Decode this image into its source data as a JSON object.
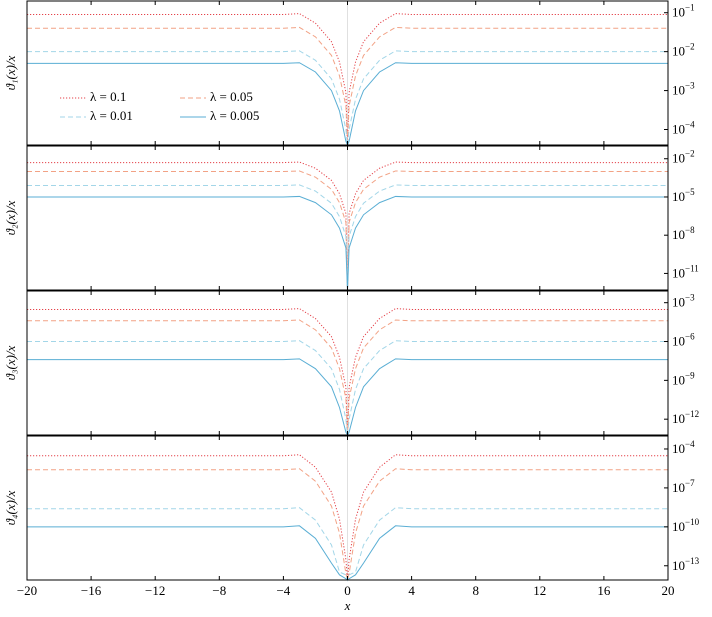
{
  "chart_data": [
    {
      "type": "line",
      "ylabel": "ϑ₁(x)/x",
      "log_y": true,
      "legend": "center left",
      "xtick_labels": false,
      "xlim": [
        -20,
        20
      ],
      "xticks": [
        -20,
        -16,
        -12,
        -8,
        -4,
        0,
        4,
        8,
        12,
        16,
        20
      ],
      "ylim": [
        4e-05,
        0.2
      ],
      "yticks": [
        {
          "value": 0.1,
          "label": "10−1"
        },
        {
          "value": 0.01,
          "label": "10−2"
        },
        {
          "value": 0.001,
          "label": "10−3"
        },
        {
          "value": 0.0001,
          "label": "10−4"
        }
      ],
      "x": [
        -20,
        -12,
        -4,
        -3,
        -2,
        -1,
        -0.5,
        -0.1,
        0,
        0.1,
        0.5,
        1,
        2,
        3,
        4,
        12,
        20
      ],
      "series": [
        {
          "name": "λ = 0.1",
          "color": "#e4424a",
          "line_style": "dotted",
          "values": [
            0.09,
            0.09,
            0.09,
            0.095,
            0.054,
            0.018,
            0.0054,
            0.0009,
            4e-05,
            0.0009,
            0.0054,
            0.018,
            0.054,
            0.095,
            0.09,
            0.09,
            0.09
          ]
        },
        {
          "name": "λ = 0.05",
          "color": "#f2a285",
          "line_style": "dashed",
          "values": [
            0.04,
            0.04,
            0.04,
            0.042,
            0.024,
            0.008,
            0.0024,
            0.0004,
            4e-05,
            0.0004,
            0.0024,
            0.008,
            0.024,
            0.042,
            0.04,
            0.04,
            0.04
          ]
        },
        {
          "name": "λ = 0.01",
          "color": "#a3d6e8",
          "line_style": "dashed",
          "values": [
            0.01,
            0.01,
            0.01,
            0.0105,
            0.006,
            0.002,
            0.0006,
            0.0001,
            4e-05,
            0.0001,
            0.0006,
            0.002,
            0.006,
            0.0105,
            0.01,
            0.01,
            0.01
          ]
        },
        {
          "name": "λ = 0.005",
          "color": "#5aaed4",
          "line_style": "solid",
          "values": [
            0.005,
            0.005,
            0.005,
            0.0052,
            0.003,
            0.001,
            0.0003,
            5e-05,
            4e-05,
            5e-05,
            0.0003,
            0.001,
            0.003,
            0.0052,
            0.005,
            0.005,
            0.005
          ]
        }
      ]
    },
    {
      "type": "line",
      "ylabel": "ϑ₂(x)/x",
      "log_y": true,
      "xtick_labels": false,
      "xlim": [
        -20,
        20
      ],
      "xticks": [
        -20,
        -16,
        -12,
        -8,
        -4,
        0,
        4,
        8,
        12,
        16,
        20
      ],
      "ylim": [
        5e-13,
        0.1
      ],
      "yticks": [
        {
          "value": 0.01,
          "label": "10−2"
        },
        {
          "value": 1e-05,
          "label": "10−5"
        },
        {
          "value": 1e-08,
          "label": "10−8"
        },
        {
          "value": 1e-11,
          "label": "10−11"
        }
      ],
      "x": [
        -20,
        -12,
        -4,
        -3,
        -2,
        -1,
        -0.5,
        -0.1,
        0,
        0.1,
        0.5,
        1,
        2,
        3,
        4,
        12,
        20
      ],
      "series": [
        {
          "color": "#e4424a",
          "line_style": "dotted",
          "values": [
            0.005,
            0.005,
            0.005,
            0.0055,
            0.0018,
            0.0002,
            1.8e-05,
            5e-07,
            5e-13,
            5e-07,
            1.8e-05,
            0.0002,
            0.0018,
            0.0055,
            0.005,
            0.005,
            0.005
          ]
        },
        {
          "color": "#f2a285",
          "line_style": "dashed",
          "values": [
            0.001,
            0.001,
            0.001,
            0.0011,
            0.00036,
            4e-05,
            3.6e-06,
            1e-07,
            5e-13,
            1e-07,
            3.6e-06,
            4e-05,
            0.00036,
            0.0011,
            0.001,
            0.001,
            0.001
          ]
        },
        {
          "color": "#a3d6e8",
          "line_style": "dashed",
          "values": [
            8e-05,
            8e-05,
            8e-05,
            8.8e-05,
            2.9e-05,
            3.2e-06,
            2.9e-07,
            8e-09,
            5e-13,
            8e-09,
            2.9e-07,
            3.2e-06,
            2.9e-05,
            8.8e-05,
            8e-05,
            8e-05,
            8e-05
          ]
        },
        {
          "color": "#5aaed4",
          "line_style": "solid",
          "values": [
            1e-05,
            1e-05,
            1e-05,
            1.1e-05,
            3.6e-06,
            4e-07,
            3.6e-08,
            1e-09,
            5e-13,
            1e-09,
            3.6e-08,
            4e-07,
            3.6e-06,
            1.1e-05,
            1e-05,
            1e-05,
            1e-05
          ]
        }
      ]
    },
    {
      "type": "line",
      "ylabel": "ϑ₃(x)/x",
      "log_y": true,
      "xtick_labels": false,
      "xlim": [
        -20,
        20
      ],
      "xticks": [
        -20,
        -16,
        -12,
        -8,
        -4,
        0,
        4,
        8,
        12,
        16,
        20
      ],
      "ylim": [
        6e-14,
        0.008
      ],
      "yticks": [
        {
          "value": 0.001,
          "label": "10−3"
        },
        {
          "value": 1e-06,
          "label": "10−6"
        },
        {
          "value": 1e-09,
          "label": "10−9"
        },
        {
          "value": 1e-12,
          "label": "10−12"
        }
      ],
      "x": [
        -20,
        -12,
        -4,
        -3,
        -2,
        -1,
        -0.5,
        -0.1,
        0,
        0.1,
        0.5,
        1,
        2,
        3,
        4,
        12,
        20
      ],
      "series": [
        {
          "color": "#e4424a",
          "line_style": "dotted",
          "values": [
            0.0003,
            0.0003,
            0.0003,
            0.00035,
            6e-05,
            2.4e-06,
            6e-08,
            3e-10,
            6e-14,
            3e-10,
            6e-08,
            2.4e-06,
            6e-05,
            0.00035,
            0.0003,
            0.0003,
            0.0003
          ]
        },
        {
          "color": "#f2a285",
          "line_style": "dashed",
          "values": [
            4e-05,
            4e-05,
            4e-05,
            4.6e-05,
            8e-06,
            3.2e-07,
            8e-09,
            4e-11,
            6e-14,
            4e-11,
            8e-09,
            3.2e-07,
            8e-06,
            4.6e-05,
            4e-05,
            4e-05,
            4e-05
          ]
        },
        {
          "color": "#a3d6e8",
          "line_style": "dashed",
          "values": [
            1e-06,
            1e-06,
            1e-06,
            1.16e-06,
            2e-07,
            8e-09,
            2e-10,
            1e-12,
            6e-14,
            1e-12,
            2e-10,
            8e-09,
            2e-07,
            1.16e-06,
            1e-06,
            1e-06,
            1e-06
          ]
        },
        {
          "color": "#5aaed4",
          "line_style": "solid",
          "values": [
            4e-08,
            4e-08,
            4e-08,
            4.6e-08,
            8e-09,
            3.2e-10,
            8e-12,
            1e-13,
            6e-14,
            1e-13,
            8e-12,
            3.2e-10,
            8e-09,
            4.6e-08,
            4e-08,
            4e-08,
            4e-08
          ]
        }
      ]
    },
    {
      "type": "line",
      "ylabel": "ϑ₄(x)/x",
      "xlabel": "x",
      "log_y": true,
      "xtick_labels": true,
      "xlim": [
        -20,
        20
      ],
      "xticks": [
        -20,
        -16,
        -12,
        -8,
        -4,
        0,
        4,
        8,
        12,
        16,
        20
      ],
      "ylim": [
        8e-15,
        0.001
      ],
      "yticks": [
        {
          "value": 0.0001,
          "label": "10−4"
        },
        {
          "value": 1e-07,
          "label": "10−7"
        },
        {
          "value": 1e-10,
          "label": "10−10"
        },
        {
          "value": 1e-13,
          "label": "10−13"
        }
      ],
      "x": [
        -20,
        -12,
        -4,
        -3,
        -2,
        -1,
        -0.5,
        -0.1,
        0,
        0.1,
        0.5,
        1,
        2,
        3,
        4,
        12,
        20
      ],
      "series": [
        {
          "color": "#e4424a",
          "line_style": "dotted",
          "values": [
            3e-05,
            3e-05,
            3e-05,
            3.6e-05,
            3.9e-06,
            4.8e-08,
            3.9e-10,
            3e-13,
            8e-15,
            3e-13,
            3.9e-10,
            4.8e-08,
            3.9e-06,
            3.6e-05,
            3e-05,
            3e-05,
            3e-05
          ]
        },
        {
          "color": "#f2a285",
          "line_style": "dashed",
          "values": [
            2.5e-06,
            2.5e-06,
            2.5e-06,
            3e-06,
            3.3e-07,
            4e-09,
            3.3e-11,
            2.5e-14,
            8e-15,
            2.5e-14,
            3.3e-11,
            4e-09,
            3.3e-07,
            3e-06,
            2.5e-06,
            2.5e-06,
            2.5e-06
          ]
        },
        {
          "color": "#a3d6e8",
          "line_style": "dashed",
          "values": [
            2.5e-09,
            2.5e-09,
            2.5e-09,
            3e-09,
            3.3e-10,
            4e-12,
            3.3e-14,
            2e-14,
            8e-15,
            2e-14,
            3.3e-14,
            4e-12,
            3.3e-10,
            3e-09,
            2.5e-09,
            2.5e-09,
            2.5e-09
          ]
        },
        {
          "color": "#5aaed4",
          "line_style": "solid",
          "values": [
            1e-10,
            1e-10,
            1e-10,
            1.2e-10,
            1.3e-11,
            1.6e-13,
            2e-14,
            1e-14,
            8e-15,
            1e-14,
            2e-14,
            1.6e-13,
            1.3e-11,
            1.2e-10,
            1e-10,
            1e-10,
            1e-10
          ]
        }
      ]
    }
  ]
}
